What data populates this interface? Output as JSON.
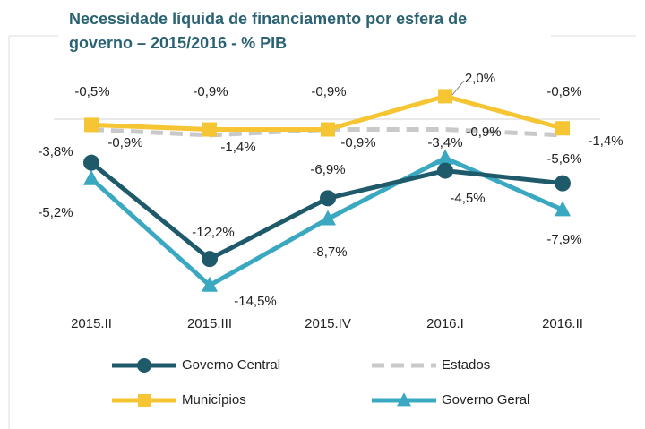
{
  "chart_data": {
    "type": "line",
    "title": "Necessidade líquida de financiamento por esfera de governo – 2015/2016 - % PIB",
    "categories": [
      "2015.II",
      "2015.III",
      "2015.IV",
      "2016.I",
      "2016.II"
    ],
    "ylim": [
      -16,
      4
    ],
    "series": [
      {
        "name": "Estados",
        "color": "#c9c9c9",
        "dash": true,
        "marker": "none",
        "values": [
          -0.9,
          -1.4,
          -0.9,
          -0.9,
          -1.4
        ],
        "value_labels": [
          "-0,9%",
          "-1,4%",
          "-0,9%",
          "-0,9%",
          "-1,4%"
        ]
      },
      {
        "name": "Municípios",
        "color": "#f6c533",
        "marker": "square",
        "values": [
          -0.5,
          -0.9,
          -0.9,
          2.0,
          -0.8
        ],
        "value_labels": [
          "-0,5%",
          "-0,9%",
          "-0,9%",
          "2,0%",
          "-0,8%"
        ]
      },
      {
        "name": "Governo Geral",
        "color": "#3aa8c1",
        "marker": "triangle",
        "values": [
          -5.2,
          -14.5,
          -8.7,
          -3.4,
          -7.9
        ],
        "value_labels": [
          "-5,2%",
          "-14,5%",
          "-8,7%",
          "-3,4%",
          "-7,9%"
        ]
      },
      {
        "name": "Governo Central",
        "color": "#1f5a6a",
        "marker": "circle",
        "values": [
          -3.8,
          -12.2,
          -6.9,
          -4.5,
          -5.6
        ],
        "value_labels": [
          "-3,8%",
          "-12,2%",
          "-6,9%",
          "-4,5%",
          "-5,6%"
        ]
      }
    ]
  }
}
